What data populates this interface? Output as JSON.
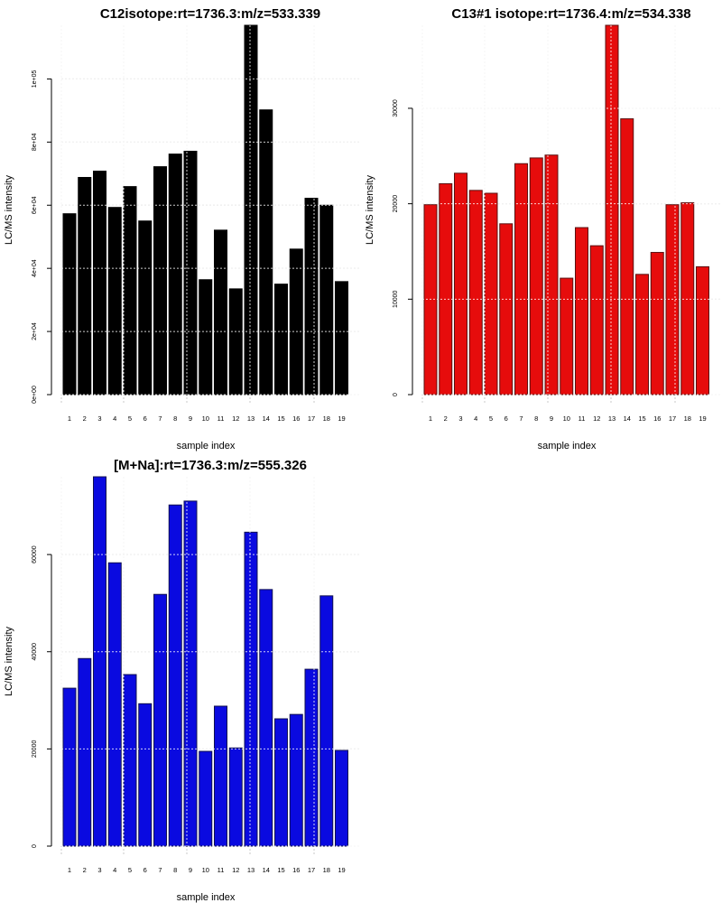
{
  "chart_data": [
    {
      "type": "bar",
      "title": "C12isotope:rt=1736.3:m/z=533.339",
      "xlabel": "sample index",
      "ylabel": "LC/MS intensity",
      "categories": [
        "1",
        "2",
        "3",
        "4",
        "5",
        "6",
        "7",
        "8",
        "9",
        "10",
        "11",
        "12",
        "13",
        "14",
        "15",
        "16",
        "17",
        "18",
        "19"
      ],
      "values": [
        57300,
        68800,
        70800,
        59300,
        65900,
        55000,
        72200,
        76200,
        77100,
        36400,
        52100,
        33500,
        117000,
        90200,
        35000,
        46100,
        62200,
        60000,
        35800
      ],
      "yticks": [
        0,
        20000,
        40000,
        60000,
        80000,
        100000
      ],
      "ytick_labels": [
        "0e+00",
        "2e+04",
        "4e+04",
        "6e+04",
        "8e+04",
        "1e+05"
      ],
      "ylim": [
        0,
        117000
      ],
      "grid": true,
      "bar_color": "#000000",
      "bar_border": "#000000"
    },
    {
      "type": "bar",
      "title": "C13#1 isotope:rt=1736.4:m/z=534.338",
      "xlabel": "sample index",
      "ylabel": "LC/MS intensity",
      "categories": [
        "1",
        "2",
        "3",
        "4",
        "5",
        "6",
        "7",
        "8",
        "9",
        "10",
        "11",
        "12",
        "13",
        "14",
        "15",
        "16",
        "17",
        "18",
        "19"
      ],
      "values": [
        19900,
        22100,
        23200,
        21400,
        21100,
        17900,
        24200,
        24800,
        25100,
        12200,
        17500,
        15600,
        38700,
        28900,
        12600,
        14900,
        19900,
        20100,
        13400
      ],
      "yticks": [
        0,
        10000,
        20000,
        30000
      ],
      "ytick_labels": [
        "0",
        "10000",
        "20000",
        "30000"
      ],
      "ylim": [
        0,
        38700
      ],
      "grid": true,
      "bar_color": "#e60c0c",
      "bar_border": "#5a1010"
    },
    {
      "type": "bar",
      "title": "[M+Na]:rt=1736.3:m/z=555.326",
      "xlabel": "sample index",
      "ylabel": "LC/MS intensity",
      "categories": [
        "1",
        "2",
        "3",
        "4",
        "5",
        "6",
        "7",
        "8",
        "9",
        "10",
        "11",
        "12",
        "13",
        "14",
        "15",
        "16",
        "17",
        "18",
        "19"
      ],
      "values": [
        32500,
        38600,
        76000,
        58300,
        35300,
        29300,
        51800,
        70200,
        71000,
        19500,
        28800,
        20200,
        64600,
        52800,
        26200,
        27100,
        36400,
        51500,
        19700
      ],
      "yticks": [
        0,
        20000,
        40000,
        60000
      ],
      "ytick_labels": [
        "0",
        "20000",
        "40000",
        "60000"
      ],
      "ylim": [
        0,
        76000
      ],
      "grid": true,
      "bar_color": "#0a0ae0",
      "bar_border": "#101050"
    }
  ]
}
